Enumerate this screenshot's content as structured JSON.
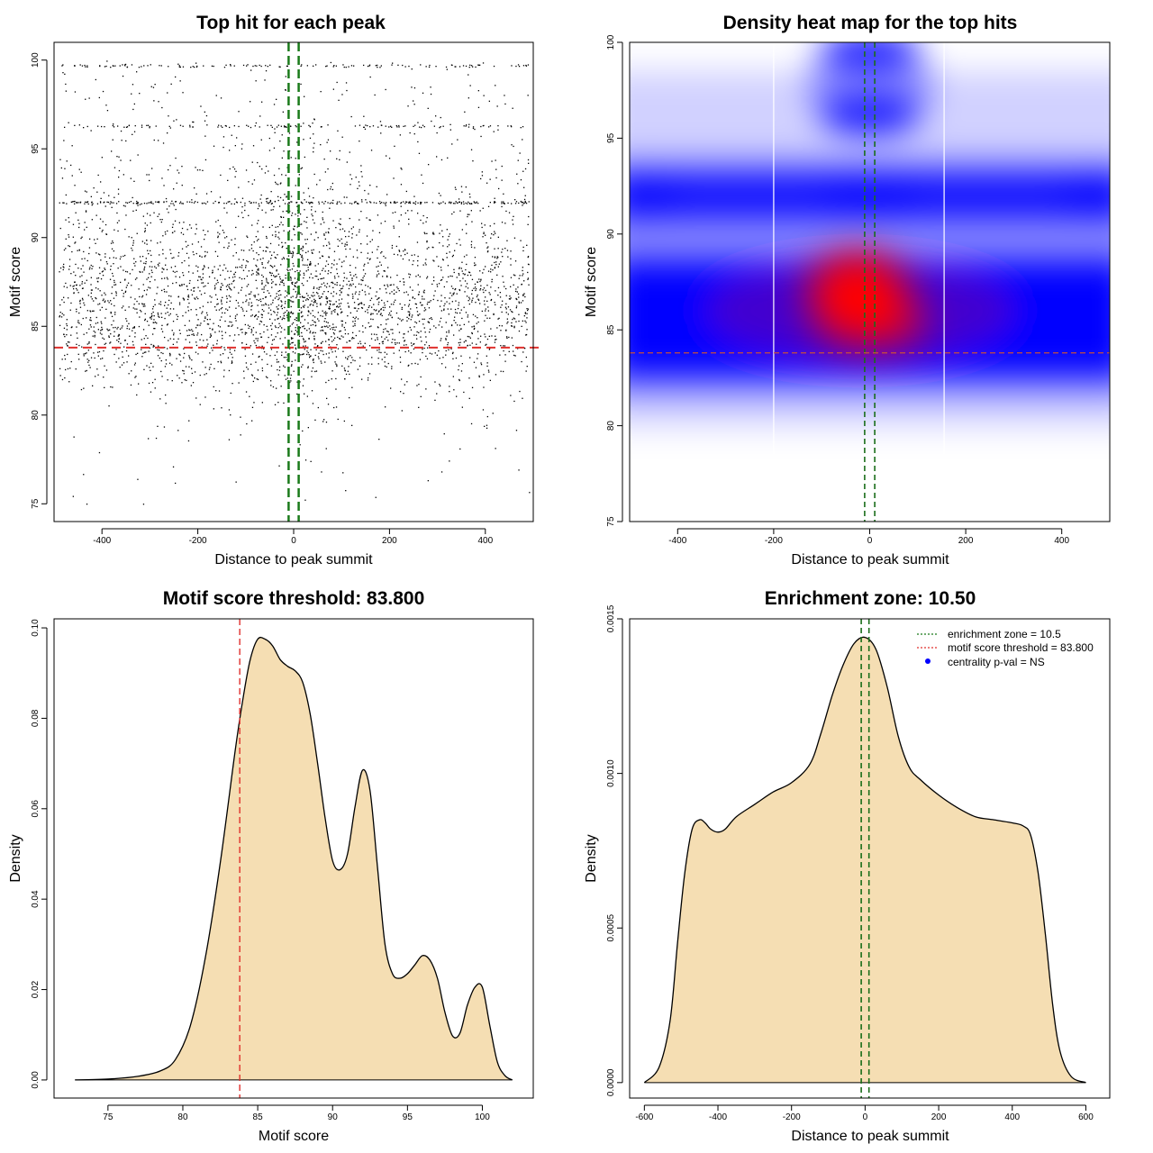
{
  "charts": [
    {
      "type": "scatter",
      "title": "Top hit for each peak",
      "xlabel": "Distance to peak summit",
      "ylabel": "Motif score",
      "xlim": [
        -500,
        500
      ],
      "ylim": [
        74,
        101
      ],
      "xticks": [
        "-400",
        "-200",
        "0",
        "200",
        "400"
      ],
      "yticks": [
        "75",
        "80",
        "85",
        "90",
        "95",
        "100"
      ],
      "threshold_line": 83.8,
      "zone_lines": [
        -10.5,
        10.5
      ],
      "threshold_color": "#e0302d",
      "zone_color": "#1a7a1a",
      "point_color": "#000000",
      "score_levels": [
        {
          "score": 99.7,
          "relative_density": 0.35
        },
        {
          "score": 96.3,
          "relative_density": 0.3
        },
        {
          "score": 92.0,
          "relative_density": 0.7
        },
        {
          "score": 86.5,
          "relative_density": 1.0
        },
        {
          "score": 84.0,
          "relative_density": 0.9
        },
        {
          "score": 81.0,
          "relative_density": 0.3
        },
        {
          "score": 77.0,
          "relative_density": 0.03
        }
      ]
    },
    {
      "type": "heatmap",
      "title": "Density heat map for the top hits",
      "xlabel": "Distance to peak summit",
      "ylabel": "Motif score",
      "xlim": [
        -500,
        500
      ],
      "ylim": [
        75,
        100
      ],
      "xticks": [
        "-400",
        "-200",
        "0",
        "200",
        "400"
      ],
      "yticks": [
        "75",
        "80",
        "85",
        "90",
        "95",
        "100"
      ],
      "threshold_line": 83.8,
      "zone_lines": [
        -10.5,
        10.5
      ],
      "guide_lines": [
        -200,
        155
      ],
      "colors": {
        "low": "#ffffff",
        "mid": "#0000ff",
        "high": "#ff0000"
      },
      "hotspots": [
        {
          "x": -25,
          "y": 86.8,
          "intensity": "high"
        },
        {
          "x": 0,
          "y": 99.6,
          "intensity": "mid"
        },
        {
          "x": 0,
          "y": 96.2,
          "intensity": "mid"
        },
        {
          "x": 0,
          "y": 92.0,
          "intensity": "mid"
        },
        {
          "x": -470,
          "y": 92.0,
          "intensity": "mid"
        },
        {
          "x": 470,
          "y": 92.0,
          "intensity": "mid"
        }
      ]
    },
    {
      "type": "area",
      "title": "Motif score threshold: 83.800",
      "xlabel": "Motif score",
      "ylabel": "Density",
      "xlim": [
        71.4,
        103.4
      ],
      "ylim": [
        -0.004,
        0.102
      ],
      "xticks": [
        "75",
        "80",
        "85",
        "90",
        "95",
        "100"
      ],
      "yticks": [
        "0.00",
        "0.02",
        "0.04",
        "0.06",
        "0.08",
        "0.10"
      ],
      "threshold_line": 83.8,
      "fill_color": "#f5deb3",
      "x": [
        72.8,
        75.0,
        77.0,
        78.5,
        79.5,
        80.5,
        81.5,
        82.5,
        83.5,
        84.0,
        84.5,
        85.0,
        85.5,
        86.0,
        86.5,
        87.0,
        87.5,
        88.0,
        88.5,
        89.0,
        89.5,
        90.0,
        90.5,
        91.0,
        91.5,
        92.0,
        92.5,
        93.0,
        93.5,
        94.0,
        94.5,
        95.0,
        95.5,
        96.0,
        96.5,
        97.0,
        97.5,
        98.0,
        98.5,
        99.0,
        99.5,
        100.0,
        100.5,
        101.0,
        101.5,
        102.0
      ],
      "y": [
        0.0,
        0.0002,
        0.0008,
        0.002,
        0.0045,
        0.012,
        0.027,
        0.048,
        0.073,
        0.084,
        0.093,
        0.0975,
        0.0975,
        0.096,
        0.093,
        0.0915,
        0.0905,
        0.088,
        0.081,
        0.07,
        0.058,
        0.0485,
        0.0465,
        0.05,
        0.0605,
        0.0685,
        0.064,
        0.047,
        0.03,
        0.0235,
        0.0225,
        0.0235,
        0.0255,
        0.0275,
        0.0265,
        0.0225,
        0.015,
        0.0098,
        0.0103,
        0.0165,
        0.0205,
        0.0205,
        0.012,
        0.004,
        0.001,
        0.0
      ]
    },
    {
      "type": "area",
      "title": "Enrichment zone: 10.50",
      "xlabel": "Distance to peak summit",
      "ylabel": "Density",
      "xlim": [
        -640,
        665
      ],
      "ylim": [
        -5e-05,
        0.0015
      ],
      "xticks": [
        "-600",
        "-400",
        "-200",
        "0",
        "200",
        "400",
        "600"
      ],
      "yticks": [
        "0.0000",
        "0.0005",
        "0.0010",
        "0.0015"
      ],
      "zone_lines": [
        -10.5,
        10.5
      ],
      "fill_color": "#f5deb3",
      "x": [
        -600,
        -560,
        -530,
        -510,
        -490,
        -470,
        -450,
        -435,
        -420,
        -400,
        -380,
        -350,
        -300,
        -250,
        -200,
        -150,
        -120,
        -90,
        -60,
        -30,
        0,
        30,
        60,
        90,
        120,
        150,
        200,
        250,
        300,
        350,
        400,
        430,
        450,
        470,
        490,
        510,
        530,
        560,
        600
      ],
      "y": [
        0.0,
        5e-05,
        0.0002,
        0.00045,
        0.00068,
        0.00082,
        0.00085,
        0.00084,
        0.00082,
        0.00081,
        0.00082,
        0.00086,
        0.0009,
        0.00094,
        0.00097,
        0.00103,
        0.00113,
        0.00125,
        0.00135,
        0.00142,
        0.00144,
        0.0014,
        0.00128,
        0.00112,
        0.00102,
        0.00098,
        0.00093,
        0.00089,
        0.00086,
        0.00085,
        0.00084,
        0.00083,
        0.0008,
        0.00068,
        0.00048,
        0.00025,
        0.0001,
        2e-05,
        0.0
      ],
      "legend": {
        "position": "top-right",
        "entries": [
          {
            "label": "enrichment zone = 10.5",
            "color": "#1a7a1a",
            "style": "dotted-line"
          },
          {
            "label": "motif score threshold = 83.800",
            "color": "#e0302d",
            "style": "dotted-line"
          },
          {
            "label": "centrality p-val = NS",
            "color": "#0000ff",
            "style": "dot"
          }
        ]
      }
    }
  ]
}
